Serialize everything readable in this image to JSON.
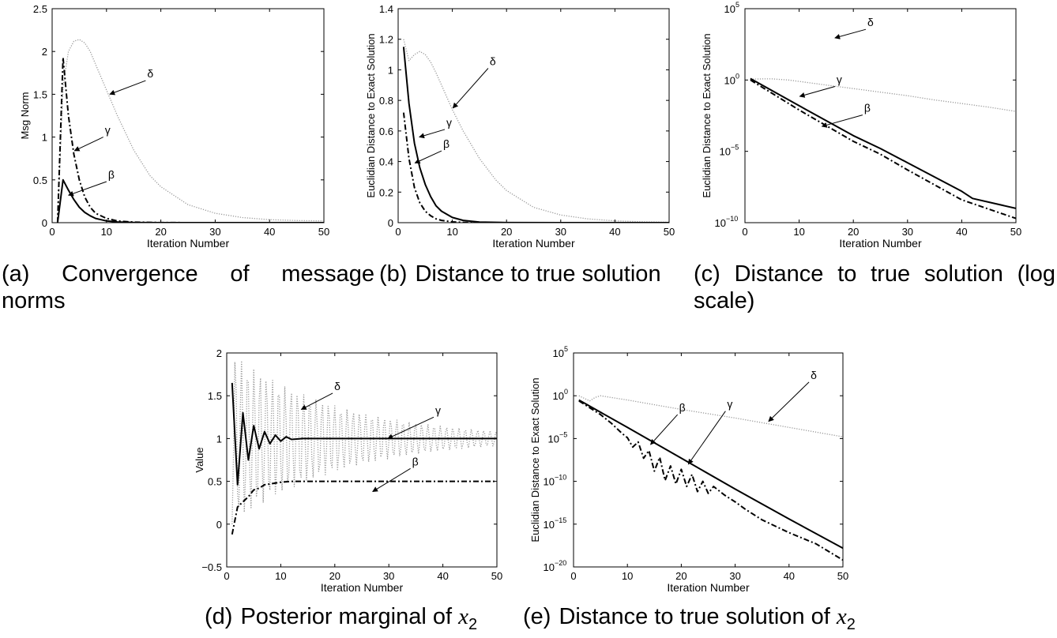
{
  "captions": {
    "a": {
      "label": "(a)",
      "line1_words": [
        "Convergence",
        "of",
        "message"
      ],
      "line2": "norms"
    },
    "b": {
      "label": "(b)",
      "text": "Distance to true solution"
    },
    "c": {
      "label": "(c)",
      "line1_words": [
        "Distance",
        "to",
        "true",
        "solution",
        "(log"
      ],
      "line2": "scale)"
    },
    "d": {
      "label": "(d)",
      "text": "Posterior marginal of ",
      "var": "x",
      "sub": "2"
    },
    "e": {
      "label": "(e)",
      "text": "Distance to true solution of ",
      "var": "x",
      "sub": "2"
    }
  },
  "chart_data": [
    {
      "id": "a",
      "type": "line",
      "xlabel": "Iteration Number",
      "ylabel": "Msg Norm",
      "xlim": [
        0,
        50
      ],
      "ylim": [
        0,
        2.5
      ],
      "yscale": "linear",
      "xticks": [
        0,
        10,
        20,
        30,
        40,
        50
      ],
      "yticks": [
        0,
        0.5,
        1,
        1.5,
        2,
        2.5
      ],
      "yticklabels": [
        "0",
        "0.5",
        "1",
        "1.5",
        "2",
        "2.5"
      ],
      "series": [
        {
          "name": "δ",
          "style": "dotted",
          "color": "#999999",
          "x": [
            1,
            2,
            3,
            4,
            5,
            6,
            7,
            8,
            10,
            12,
            15,
            18,
            20,
            25,
            30,
            35,
            40,
            45,
            50
          ],
          "y": [
            0.0,
            1.6,
            2.0,
            2.12,
            2.14,
            2.1,
            2.0,
            1.85,
            1.55,
            1.25,
            0.85,
            0.55,
            0.42,
            0.21,
            0.11,
            0.06,
            0.035,
            0.025,
            0.02
          ]
        },
        {
          "name": "γ",
          "style": "dashdot",
          "color": "#000000",
          "x": [
            1,
            2,
            3,
            4,
            5,
            6,
            7,
            8,
            10,
            12,
            15,
            20,
            30,
            50
          ],
          "y": [
            0.0,
            1.93,
            1.25,
            0.8,
            0.5,
            0.3,
            0.18,
            0.11,
            0.05,
            0.02,
            0.006,
            0.001,
            0.0,
            0.0
          ]
        },
        {
          "name": "β",
          "style": "solid",
          "color": "#000000",
          "x": [
            1,
            2,
            3,
            4,
            5,
            6,
            7,
            8,
            10,
            12,
            15,
            20,
            30,
            50
          ],
          "y": [
            0.0,
            0.5,
            0.38,
            0.27,
            0.18,
            0.12,
            0.08,
            0.05,
            0.02,
            0.008,
            0.002,
            0.0,
            0.0,
            0.0
          ]
        }
      ],
      "annotations": [
        {
          "text": "δ",
          "tx": 17.5,
          "ty": 1.66,
          "ax": 10.6,
          "ay": 1.5
        },
        {
          "text": "γ",
          "tx": 9.7,
          "ty": 1.0,
          "ax": 4.1,
          "ay": 0.84
        },
        {
          "text": "β",
          "tx": 10.3,
          "ty": 0.48,
          "ax": 3.0,
          "ay": 0.32
        }
      ]
    },
    {
      "id": "b",
      "type": "line",
      "xlabel": "Iteration Number",
      "ylabel": "Euclidian Distance to Exact Solution",
      "xlim": [
        0,
        50
      ],
      "ylim": [
        0,
        1.4
      ],
      "yscale": "linear",
      "xticks": [
        0,
        10,
        20,
        30,
        40,
        50
      ],
      "yticks": [
        0,
        0.2,
        0.4,
        0.6,
        0.8,
        1.0,
        1.2,
        1.4
      ],
      "yticklabels": [
        "0",
        "0.2",
        "0.4",
        "0.6",
        "0.8",
        "1",
        "1.2",
        "1.4"
      ],
      "series": [
        {
          "name": "δ",
          "style": "dotted",
          "color": "#999999",
          "x": [
            1,
            2,
            3,
            4,
            5,
            6,
            7,
            8,
            10,
            12,
            15,
            18,
            20,
            25,
            30,
            35,
            40,
            45,
            50
          ],
          "y": [
            1.2,
            1.06,
            1.1,
            1.12,
            1.1,
            1.05,
            0.98,
            0.9,
            0.74,
            0.6,
            0.42,
            0.28,
            0.21,
            0.1,
            0.05,
            0.025,
            0.012,
            0.006,
            0.003
          ]
        },
        {
          "name": "γ",
          "style": "solid",
          "color": "#000000",
          "x": [
            1,
            2,
            3,
            4,
            5,
            6,
            7,
            8,
            10,
            12,
            15,
            20,
            30,
            50
          ],
          "y": [
            1.15,
            0.78,
            0.52,
            0.36,
            0.25,
            0.17,
            0.11,
            0.075,
            0.034,
            0.015,
            0.004,
            0.0005,
            0.0,
            0.0
          ]
        },
        {
          "name": "β",
          "style": "dashdot",
          "color": "#000000",
          "x": [
            1,
            2,
            3,
            4,
            5,
            6,
            7,
            8,
            10,
            12,
            15,
            20,
            30,
            50
          ],
          "y": [
            0.72,
            0.42,
            0.23,
            0.13,
            0.075,
            0.045,
            0.025,
            0.015,
            0.005,
            0.002,
            0.0,
            0.0,
            0.0,
            0.0
          ]
        }
      ],
      "annotations": [
        {
          "text": "δ",
          "tx": 10.1,
          "ty": 0.75,
          "ax": 10.1,
          "ay": 0.75,
          "lx": 16.9,
          "ly": 1.01
        },
        {
          "text": "γ",
          "tx": 3.9,
          "ty": 0.56,
          "ax": 3.9,
          "ay": 0.56,
          "lx": 8.9,
          "ly": 0.61
        },
        {
          "text": "β",
          "tx": 3.1,
          "ty": 0.39,
          "ax": 3.1,
          "ay": 0.39,
          "lx": 8.3,
          "ly": 0.47
        }
      ]
    },
    {
      "id": "c",
      "type": "line",
      "xlabel": "Iteration Number",
      "ylabel": "Euclidian Distance to Exact Solution",
      "xlim": [
        0,
        50
      ],
      "ylim": [
        -10,
        5
      ],
      "yscale": "log",
      "xticks": [
        0,
        10,
        20,
        30,
        40,
        50
      ],
      "yticks": [
        -10,
        -5,
        0,
        5
      ],
      "yticklabels": [
        [
          "10",
          "−10"
        ],
        [
          "10",
          "−5"
        ],
        [
          "10",
          "0"
        ],
        [
          "10",
          "5"
        ]
      ],
      "series": [
        {
          "name": "δ",
          "style": "dotted",
          "color": "#999999",
          "x": [
            1,
            3,
            5,
            8,
            10,
            15,
            20,
            25,
            30,
            35,
            40,
            45,
            50
          ],
          "y": [
            0.05,
            0.08,
            0.08,
            0.0,
            -0.1,
            -0.35,
            -0.6,
            -0.85,
            -1.1,
            -1.4,
            -1.65,
            -1.9,
            -2.2
          ]
        },
        {
          "name": "γ",
          "style": "solid",
          "color": "#000000",
          "x": [
            1,
            10,
            20,
            25,
            30,
            40,
            42,
            50
          ],
          "y": [
            0.1,
            -1.8,
            -3.9,
            -4.8,
            -5.8,
            -7.8,
            -8.3,
            -9.0
          ]
        },
        {
          "name": "β",
          "style": "dashdot",
          "color": "#000000",
          "x": [
            1,
            10,
            20,
            25,
            30,
            40,
            50
          ],
          "y": [
            0.0,
            -2.1,
            -4.3,
            -5.2,
            -6.3,
            -8.4,
            -9.7
          ]
        }
      ],
      "annotations": [
        {
          "text": "δ",
          "tx": 16.6,
          "ty": 2.95,
          "ax": 16.6,
          "ay": 2.95,
          "lx": 22.6,
          "ly": 3.55
        },
        {
          "text": "γ",
          "tx": 10.1,
          "ty": -1.15,
          "ax": 10.1,
          "ay": -1.15,
          "lx": 16.9,
          "ly": -0.45
        },
        {
          "text": "β",
          "tx": 14.2,
          "ty": -3.25,
          "ax": 14.2,
          "ay": -3.25,
          "lx": 22.0,
          "ly": -2.45
        }
      ]
    },
    {
      "id": "d",
      "type": "line",
      "xlabel": "Iteration Number",
      "ylabel": "Value",
      "xlim": [
        0,
        50
      ],
      "ylim": [
        -0.5,
        2
      ],
      "yscale": "linear",
      "xticks": [
        0,
        10,
        20,
        30,
        40,
        50
      ],
      "yticks": [
        -0.5,
        0,
        0.5,
        1,
        1.5,
        2
      ],
      "yticklabels": [
        "−0.5",
        "0",
        "0.5",
        "1",
        "1.5",
        "2"
      ],
      "series": [
        {
          "name": "δ",
          "style": "dotted",
          "color": "#999999",
          "generator": "oscillation",
          "params": {
            "base": 1.0,
            "amp": 1.0,
            "decay": 0.05,
            "period": 1.15,
            "x_start": 1,
            "x_end": 50
          }
        },
        {
          "name": "γ",
          "style": "solid",
          "color": "#000000",
          "x": [
            1,
            2,
            3,
            4,
            5,
            6,
            7,
            8,
            9,
            10,
            11,
            12,
            14,
            20,
            50
          ],
          "y": [
            1.65,
            0.46,
            1.3,
            0.75,
            1.15,
            0.88,
            1.08,
            0.94,
            1.04,
            0.97,
            1.02,
            0.99,
            1.0,
            1.0,
            1.0
          ]
        },
        {
          "name": "β",
          "style": "dashdot",
          "color": "#000000",
          "x": [
            1,
            2,
            3,
            4,
            5,
            6,
            7,
            8,
            10,
            12,
            15,
            20,
            50
          ],
          "y": [
            -0.12,
            0.2,
            0.26,
            0.32,
            0.4,
            0.42,
            0.46,
            0.47,
            0.49,
            0.5,
            0.5,
            0.5,
            0.5
          ]
        }
      ],
      "annotations": [
        {
          "text": "δ",
          "tx": 13.8,
          "ty": 1.34,
          "ax": 13.8,
          "ay": 1.34,
          "lx": 19.9,
          "ly": 1.53
        },
        {
          "text": "γ",
          "tx": 29.8,
          "ty": 1.0,
          "ax": 29.8,
          "ay": 1.0,
          "lx": 38.6,
          "ly": 1.25
        },
        {
          "text": "β",
          "tx": 27.0,
          "ty": 0.38,
          "ax": 27.0,
          "ay": 0.38,
          "lx": 34.3,
          "ly": 0.65
        }
      ]
    },
    {
      "id": "e",
      "type": "line",
      "xlabel": "Iteration Number",
      "ylabel": "Euclidian Distance to Exact Solution",
      "xlim": [
        0,
        50
      ],
      "ylim": [
        -20,
        5
      ],
      "yscale": "log",
      "xticks": [
        0,
        10,
        20,
        30,
        40,
        50
      ],
      "yticks": [
        -20,
        -15,
        -10,
        -5,
        0,
        5
      ],
      "yticklabels": [
        [
          "10",
          "−20"
        ],
        [
          "10",
          "−15"
        ],
        [
          "10",
          "−10"
        ],
        [
          "10",
          "−5"
        ],
        [
          "10",
          "0"
        ],
        [
          "10",
          "5"
        ]
      ],
      "series": [
        {
          "name": "δ",
          "style": "dotted",
          "color": "#999999",
          "x": [
            1,
            2,
            3,
            4,
            5,
            10,
            20,
            30,
            40,
            50
          ],
          "y": [
            0.0,
            -0.3,
            -0.6,
            -0.2,
            0.0,
            -0.5,
            -1.6,
            -2.6,
            -3.7,
            -4.8
          ]
        },
        {
          "name": "γ",
          "style": "solid",
          "color": "#000000",
          "x": [
            1,
            10,
            20,
            30,
            40,
            50
          ],
          "y": [
            -0.5,
            -3.7,
            -7.3,
            -10.9,
            -14.4,
            -17.8
          ]
        },
        {
          "name": "β",
          "style": "dashdot",
          "color": "#000000",
          "x": [
            1,
            3,
            5,
            7,
            9,
            10,
            11,
            12,
            13,
            14,
            15,
            16,
            17,
            18,
            19,
            20,
            21,
            22,
            23,
            24,
            25,
            26,
            28,
            30,
            32,
            35,
            40,
            45,
            50
          ],
          "y": [
            -0.6,
            -1.4,
            -2.2,
            -3.2,
            -4.4,
            -4.9,
            -6.0,
            -5.4,
            -7.3,
            -6.4,
            -8.8,
            -7.2,
            -9.9,
            -8.2,
            -10.3,
            -8.6,
            -10.6,
            -9.2,
            -11.2,
            -10.0,
            -11.4,
            -10.6,
            -11.6,
            -12.4,
            -13.3,
            -14.5,
            -16.0,
            -17.3,
            -19.2
          ]
        }
      ],
      "annotations": [
        {
          "text": "δ",
          "tx": 36.2,
          "ty": -3.0,
          "ax": 36.2,
          "ay": -3.0,
          "lx": 44.0,
          "ly": 1.6
        },
        {
          "text": "β",
          "tx": 14.3,
          "ty": -5.7,
          "ax": 14.3,
          "ay": -5.7,
          "lx": 19.6,
          "ly": -2.2
        },
        {
          "text": "γ",
          "tx": 21.3,
          "ty": -8.0,
          "ax": 21.3,
          "ay": -8.0,
          "lx": 28.5,
          "ly": -1.8
        }
      ]
    }
  ]
}
